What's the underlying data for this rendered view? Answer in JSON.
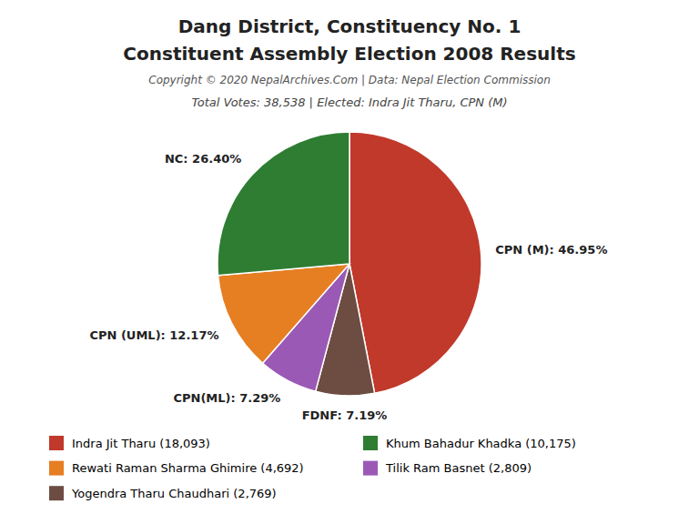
{
  "chart_data": {
    "type": "pie",
    "title": [
      "Dang District, Constituency No. 1",
      "Constituent Assembly Election 2008 Results"
    ],
    "annotations": [
      "Copyright © 2020 NepalArchives.Com | Data: Nepal Election Commission"
    ],
    "subtitle": "Total Votes: 38,538 | Elected: Indra Jit Tharu, CPN (M)",
    "categories": [
      "CPN (M): 46.95%",
      "FDNF: 7.19%",
      "CPN(ML): 7.29%",
      "CPN (UML): 12.17%",
      "NC: 26.40%"
    ],
    "values": [
      46.95,
      7.19,
      7.29,
      12.17,
      26.4
    ],
    "colors": [
      "#c0392b",
      "#6d4c41",
      "#9b59b6",
      "#e67e22",
      "#2e7d32"
    ],
    "legend_entries": [
      {
        "label": "Indra Jit Tharu (18,093)",
        "color": "#c0392b"
      },
      {
        "label": "Rewati Raman Sharma Ghimire (4,692)",
        "color": "#e67e22"
      },
      {
        "label": "Yogendra Tharu Chaudhari (2,769)",
        "color": "#6d4c41"
      },
      {
        "label": "Khum Bahadur Khadka (10,175)",
        "color": "#2e7d32"
      },
      {
        "label": "Tilik Ram Basnet (2,809)",
        "color": "#9b59b6"
      }
    ]
  }
}
